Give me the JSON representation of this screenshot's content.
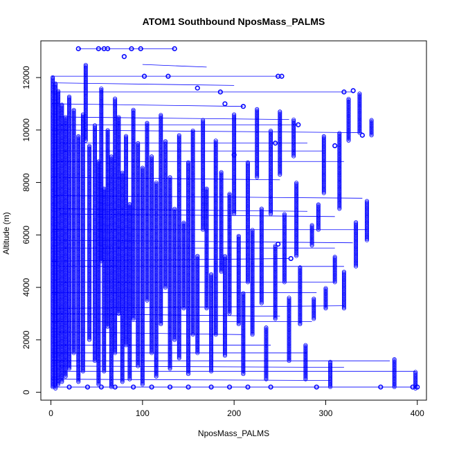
{
  "chart_data": {
    "type": "scatter",
    "title": "ATOM1 Southbound NposMass_PALMS",
    "xlabel": "NposMass_PALMS",
    "ylabel": "Altitude (m)",
    "xlim": [
      -11,
      410
    ],
    "ylim": [
      -300,
      13400
    ],
    "x_ticks": [
      0,
      100,
      200,
      300,
      400
    ],
    "y_ticks": [
      0,
      2000,
      4000,
      6000,
      8000,
      10000,
      12000
    ],
    "grid": false,
    "legend": "none",
    "series_color": "#0000ff",
    "marker": "open-circle",
    "connected_by_lines": true,
    "vertical_columns": [
      {
        "x": 2,
        "y0": 200,
        "y1": 12050
      },
      {
        "x": 5,
        "y0": 150,
        "y1": 11800
      },
      {
        "x": 8,
        "y0": 300,
        "y1": 11500
      },
      {
        "x": 12,
        "y0": 400,
        "y1": 11000
      },
      {
        "x": 16,
        "y0": 600,
        "y1": 10500
      },
      {
        "x": 20,
        "y0": 900,
        "y1": 11300
      },
      {
        "x": 25,
        "y0": 1500,
        "y1": 10800
      },
      {
        "x": 30,
        "y0": 400,
        "y1": 9800
      },
      {
        "x": 35,
        "y0": 800,
        "y1": 10600
      },
      {
        "x": 38,
        "y0": 9600,
        "y1": 12500
      },
      {
        "x": 42,
        "y0": 2000,
        "y1": 9400
      },
      {
        "x": 48,
        "y0": 1200,
        "y1": 10200
      },
      {
        "x": 52,
        "y0": 300,
        "y1": 8800
      },
      {
        "x": 55,
        "y0": 5000,
        "y1": 11600
      },
      {
        "x": 58,
        "y0": 800,
        "y1": 7800
      },
      {
        "x": 62,
        "y0": 2500,
        "y1": 10000
      },
      {
        "x": 66,
        "y0": 200,
        "y1": 9000
      },
      {
        "x": 70,
        "y0": 1500,
        "y1": 11200
      },
      {
        "x": 74,
        "y0": 3000,
        "y1": 10500
      },
      {
        "x": 78,
        "y0": 400,
        "y1": 8400
      },
      {
        "x": 82,
        "y0": 1800,
        "y1": 9800
      },
      {
        "x": 86,
        "y0": 500,
        "y1": 7200
      },
      {
        "x": 90,
        "y0": 2800,
        "y1": 10800
      },
      {
        "x": 95,
        "y0": 1000,
        "y1": 9500
      },
      {
        "x": 100,
        "y0": 300,
        "y1": 8600
      },
      {
        "x": 105,
        "y0": 3500,
        "y1": 10300
      },
      {
        "x": 110,
        "y0": 1500,
        "y1": 9000
      },
      {
        "x": 115,
        "y0": 600,
        "y1": 8000
      },
      {
        "x": 120,
        "y0": 2600,
        "y1": 10600
      },
      {
        "x": 125,
        "y0": 4000,
        "y1": 9600
      },
      {
        "x": 130,
        "y0": 900,
        "y1": 8200
      },
      {
        "x": 135,
        "y0": 2000,
        "y1": 7000
      },
      {
        "x": 140,
        "y0": 1300,
        "y1": 9800
      },
      {
        "x": 145,
        "y0": 3200,
        "y1": 6500
      },
      {
        "x": 150,
        "y0": 700,
        "y1": 8800
      },
      {
        "x": 155,
        "y0": 2200,
        "y1": 10000
      },
      {
        "x": 160,
        "y0": 1500,
        "y1": 5200
      },
      {
        "x": 166,
        "y0": 6200,
        "y1": 10400
      },
      {
        "x": 170,
        "y0": 3200,
        "y1": 7800
      },
      {
        "x": 175,
        "y0": 800,
        "y1": 4500
      },
      {
        "x": 180,
        "y0": 2200,
        "y1": 9600
      },
      {
        "x": 186,
        "y0": 4600,
        "y1": 8400
      },
      {
        "x": 190,
        "y0": 1400,
        "y1": 5200
      },
      {
        "x": 195,
        "y0": 3000,
        "y1": 7600
      },
      {
        "x": 200,
        "y0": 6800,
        "y1": 10600
      },
      {
        "x": 205,
        "y0": 2600,
        "y1": 6000
      },
      {
        "x": 210,
        "y0": 700,
        "y1": 3800
      },
      {
        "x": 215,
        "y0": 4200,
        "y1": 8800
      },
      {
        "x": 220,
        "y0": 2200,
        "y1": 6200
      },
      {
        "x": 225,
        "y0": 8200,
        "y1": 10800
      },
      {
        "x": 230,
        "y0": 3400,
        "y1": 7000
      },
      {
        "x": 235,
        "y0": 500,
        "y1": 2500
      },
      {
        "x": 240,
        "y0": 6800,
        "y1": 10000
      },
      {
        "x": 245,
        "y0": 2800,
        "y1": 5600
      },
      {
        "x": 250,
        "y0": 8300,
        "y1": 10700
      },
      {
        "x": 255,
        "y0": 4200,
        "y1": 6800
      },
      {
        "x": 260,
        "y0": 1200,
        "y1": 3600
      },
      {
        "x": 265,
        "y0": 9000,
        "y1": 10400
      },
      {
        "x": 268,
        "y0": 5200,
        "y1": 8000
      },
      {
        "x": 272,
        "y0": 2600,
        "y1": 4800
      },
      {
        "x": 278,
        "y0": 500,
        "y1": 1800
      },
      {
        "x": 285,
        "y0": 5600,
        "y1": 6400
      },
      {
        "x": 287,
        "y0": 2800,
        "y1": 3600
      },
      {
        "x": 292,
        "y0": 6200,
        "y1": 7200
      },
      {
        "x": 298,
        "y0": 7600,
        "y1": 9800
      },
      {
        "x": 300,
        "y0": 3200,
        "y1": 4000
      },
      {
        "x": 305,
        "y0": 200,
        "y1": 1200
      },
      {
        "x": 310,
        "y0": 4200,
        "y1": 5200
      },
      {
        "x": 315,
        "y0": 7000,
        "y1": 9900
      },
      {
        "x": 320,
        "y0": 3200,
        "y1": 4600
      },
      {
        "x": 325,
        "y0": 9600,
        "y1": 11200
      },
      {
        "x": 333,
        "y0": 4800,
        "y1": 6500
      },
      {
        "x": 337,
        "y0": 9900,
        "y1": 11400
      },
      {
        "x": 345,
        "y0": 5800,
        "y1": 7300
      },
      {
        "x": 350,
        "y0": 9800,
        "y1": 10400
      },
      {
        "x": 375,
        "y0": 200,
        "y1": 1300
      },
      {
        "x": 398,
        "y0": 150,
        "y1": 800
      }
    ],
    "isolated_points": [
      {
        "x": 30,
        "y": 13100
      },
      {
        "x": 52,
        "y": 13100
      },
      {
        "x": 58,
        "y": 13100
      },
      {
        "x": 62,
        "y": 13100
      },
      {
        "x": 88,
        "y": 13100
      },
      {
        "x": 98,
        "y": 13100
      },
      {
        "x": 135,
        "y": 13100
      },
      {
        "x": 80,
        "y": 12800
      },
      {
        "x": 102,
        "y": 12050
      },
      {
        "x": 128,
        "y": 12050
      },
      {
        "x": 248,
        "y": 12050
      },
      {
        "x": 252,
        "y": 12050
      },
      {
        "x": 160,
        "y": 11600
      },
      {
        "x": 185,
        "y": 11450
      },
      {
        "x": 190,
        "y": 11000
      },
      {
        "x": 210,
        "y": 10900
      },
      {
        "x": 320,
        "y": 11450
      },
      {
        "x": 330,
        "y": 11500
      },
      {
        "x": 270,
        "y": 10200
      },
      {
        "x": 310,
        "y": 9400
      },
      {
        "x": 245,
        "y": 9500
      },
      {
        "x": 200,
        "y": 9050
      },
      {
        "x": 248,
        "y": 5650
      },
      {
        "x": 262,
        "y": 5100
      },
      {
        "x": 340,
        "y": 9800
      },
      {
        "x": 395,
        "y": 200
      },
      {
        "x": 400,
        "y": 200
      },
      {
        "x": 360,
        "y": 200
      },
      {
        "x": 290,
        "y": 200
      },
      {
        "x": 240,
        "y": 200
      },
      {
        "x": 215,
        "y": 200
      },
      {
        "x": 195,
        "y": 200
      },
      {
        "x": 175,
        "y": 200
      },
      {
        "x": 150,
        "y": 200
      },
      {
        "x": 130,
        "y": 200
      },
      {
        "x": 110,
        "y": 200
      },
      {
        "x": 90,
        "y": 200
      },
      {
        "x": 70,
        "y": 200
      },
      {
        "x": 55,
        "y": 200
      },
      {
        "x": 40,
        "y": 200
      },
      {
        "x": 20,
        "y": 200
      }
    ],
    "connecting_lines": [
      {
        "x0": 0,
        "y0": 200,
        "x1": 400,
        "y1": 200
      },
      {
        "x0": 0,
        "y0": 11450,
        "x1": 330,
        "y1": 11450
      },
      {
        "x0": 0,
        "y0": 9500,
        "x1": 280,
        "y1": 9500
      },
      {
        "x0": 0,
        "y0": 10000,
        "x1": 340,
        "y1": 9900
      },
      {
        "x0": 5,
        "y0": 8800,
        "x1": 320,
        "y1": 8800
      },
      {
        "x0": 3,
        "y0": 7500,
        "x1": 340,
        "y1": 7400
      },
      {
        "x0": 10,
        "y0": 6800,
        "x1": 310,
        "y1": 6700
      },
      {
        "x0": 2,
        "y0": 6200,
        "x1": 345,
        "y1": 6200
      },
      {
        "x0": 0,
        "y0": 5500,
        "x1": 310,
        "y1": 5500
      },
      {
        "x0": 8,
        "y0": 4800,
        "x1": 320,
        "y1": 4800
      },
      {
        "x0": 0,
        "y0": 4200,
        "x1": 310,
        "y1": 4200
      },
      {
        "x0": 5,
        "y0": 3200,
        "x1": 320,
        "y1": 3300
      },
      {
        "x0": 0,
        "y0": 2700,
        "x1": 285,
        "y1": 2700
      },
      {
        "x0": 3,
        "y0": 1800,
        "x1": 240,
        "y1": 1800
      },
      {
        "x0": 0,
        "y0": 1200,
        "x1": 370,
        "y1": 1200
      },
      {
        "x0": 10,
        "y0": 800,
        "x1": 398,
        "y1": 800
      },
      {
        "x0": 0,
        "y0": 500,
        "x1": 305,
        "y1": 450
      },
      {
        "x0": 30,
        "y0": 13100,
        "x1": 135,
        "y1": 13100
      },
      {
        "x0": 100,
        "y0": 12500,
        "x1": 170,
        "y1": 12400
      },
      {
        "x0": 0,
        "y0": 12050,
        "x1": 252,
        "y1": 12050
      },
      {
        "x0": 0,
        "y0": 11800,
        "x1": 200,
        "y1": 11700
      },
      {
        "x0": 0,
        "y0": 11000,
        "x1": 210,
        "y1": 10900
      },
      {
        "x0": 0,
        "y0": 10500,
        "x1": 260,
        "y1": 10400
      },
      {
        "x0": 0,
        "y0": 10200,
        "x1": 270,
        "y1": 10200
      },
      {
        "x0": 5,
        "y0": 9200,
        "x1": 300,
        "y1": 9200
      },
      {
        "x0": 0,
        "y0": 8200,
        "x1": 250,
        "y1": 8100
      },
      {
        "x0": 2,
        "y0": 7000,
        "x1": 280,
        "y1": 6900
      },
      {
        "x0": 0,
        "y0": 5800,
        "x1": 330,
        "y1": 5700
      },
      {
        "x0": 0,
        "y0": 5000,
        "x1": 260,
        "y1": 5100
      },
      {
        "x0": 0,
        "y0": 3800,
        "x1": 290,
        "y1": 3800
      },
      {
        "x0": 0,
        "y0": 3000,
        "x1": 250,
        "y1": 2900
      },
      {
        "x0": 0,
        "y0": 2300,
        "x1": 210,
        "y1": 2200
      },
      {
        "x0": 0,
        "y0": 1500,
        "x1": 280,
        "y1": 1500
      },
      {
        "x0": 0,
        "y0": 1000,
        "x1": 320,
        "y1": 950
      }
    ]
  }
}
